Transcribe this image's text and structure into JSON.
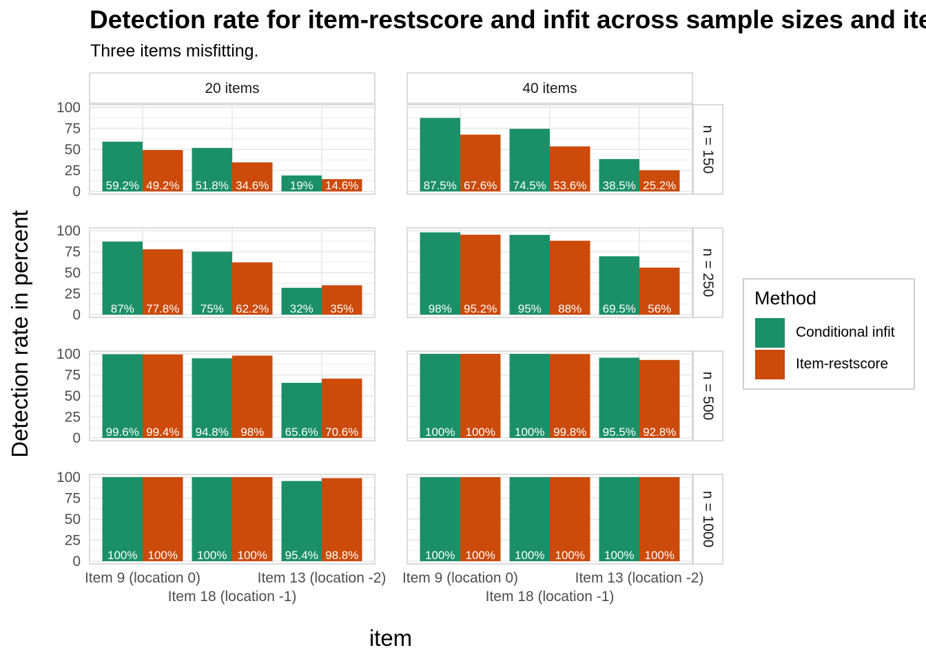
{
  "title": "Detection rate for item-restscore and infit across sample sizes and items",
  "subtitle": "Three items misfitting.",
  "legend": {
    "title": "Method",
    "items": [
      {
        "label": "Conditional infit",
        "color": "#1b9068"
      },
      {
        "label": "Item-restscore",
        "color": "#cc4a0a"
      }
    ]
  },
  "chart_data": {
    "type": "bar",
    "xlabel": "item",
    "ylabel": "Detection rate in percent",
    "ylim": [
      0,
      100
    ],
    "yticks": [
      "0",
      "25",
      "50",
      "75",
      "100"
    ],
    "grid": true,
    "legend_position": "right",
    "categories": [
      "Item 9 (location 0)",
      "Item 18 (location -1)",
      "Item 13 (location -2)"
    ],
    "column_facets": [
      "20 items",
      "40 items"
    ],
    "row_facets": [
      "n = 150",
      "n = 250",
      "n = 500",
      "n = 1000"
    ],
    "series_names": [
      "Conditional infit",
      "Item-restscore"
    ],
    "panels": [
      {
        "col": "20 items",
        "row": "n = 150",
        "values": [
          [
            59.2,
            49.2
          ],
          [
            51.8,
            34.6
          ],
          [
            19,
            14.6
          ]
        ],
        "labels": [
          [
            "59.2%",
            "49.2%"
          ],
          [
            "51.8%",
            "34.6%"
          ],
          [
            "19%",
            "14.6%"
          ]
        ]
      },
      {
        "col": "40 items",
        "row": "n = 150",
        "values": [
          [
            87.5,
            67.6
          ],
          [
            74.5,
            53.6
          ],
          [
            38.5,
            25.2
          ]
        ],
        "labels": [
          [
            "87.5%",
            "67.6%"
          ],
          [
            "74.5%",
            "53.6%"
          ],
          [
            "38.5%",
            "25.2%"
          ]
        ]
      },
      {
        "col": "20 items",
        "row": "n = 250",
        "values": [
          [
            87,
            77.8
          ],
          [
            75,
            62.2
          ],
          [
            32,
            35
          ]
        ],
        "labels": [
          [
            "87%",
            "77.8%"
          ],
          [
            "75%",
            "62.2%"
          ],
          [
            "32%",
            "35%"
          ]
        ]
      },
      {
        "col": "40 items",
        "row": "n = 250",
        "values": [
          [
            98,
            95.2
          ],
          [
            95,
            88
          ],
          [
            69.5,
            56
          ]
        ],
        "labels": [
          [
            "98%",
            "95.2%"
          ],
          [
            "95%",
            "88%"
          ],
          [
            "69.5%",
            "56%"
          ]
        ]
      },
      {
        "col": "20 items",
        "row": "n = 500",
        "values": [
          [
            99.6,
            99.4
          ],
          [
            94.8,
            98
          ],
          [
            65.6,
            70.6
          ]
        ],
        "labels": [
          [
            "99.6%",
            "99.4%"
          ],
          [
            "94.8%",
            "98%"
          ],
          [
            "65.6%",
            "70.6%"
          ]
        ]
      },
      {
        "col": "40 items",
        "row": "n = 500",
        "values": [
          [
            100,
            100
          ],
          [
            100,
            99.8
          ],
          [
            95.5,
            92.8
          ]
        ],
        "labels": [
          [
            "100%",
            "100%"
          ],
          [
            "100%",
            "99.8%"
          ],
          [
            "95.5%",
            "92.8%"
          ]
        ]
      },
      {
        "col": "20 items",
        "row": "n = 1000",
        "values": [
          [
            100,
            100
          ],
          [
            100,
            100
          ],
          [
            95.4,
            98.8
          ]
        ],
        "labels": [
          [
            "100%",
            "100%"
          ],
          [
            "100%",
            "100%"
          ],
          [
            "95.4%",
            "98.8%"
          ]
        ]
      },
      {
        "col": "40 items",
        "row": "n = 1000",
        "values": [
          [
            100,
            100
          ],
          [
            100,
            100
          ],
          [
            100,
            100
          ]
        ],
        "labels": [
          [
            "100%",
            "100%"
          ],
          [
            "100%",
            "100%"
          ],
          [
            "100%",
            "100%"
          ]
        ]
      }
    ]
  }
}
